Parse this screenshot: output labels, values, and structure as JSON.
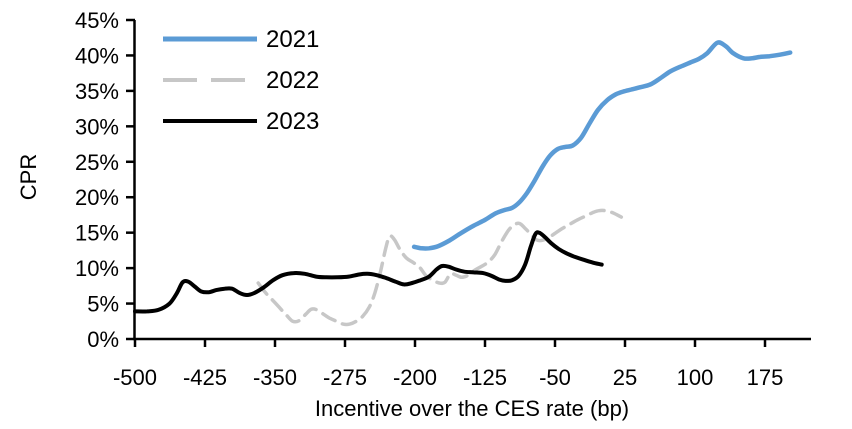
{
  "chart_data": {
    "type": "line",
    "title": "",
    "xlabel": "Incentive over the CES rate (bp)",
    "ylabel": "CPR",
    "xlim": [
      -500,
      230
    ],
    "ylim": [
      0,
      45
    ],
    "grid": false,
    "background": "#FFFFFF",
    "axis_color": "#000000",
    "legend_position": "top-left-inside",
    "x_ticks": {
      "values": [
        -500,
        -425,
        -350,
        -275,
        -200,
        -125,
        -50,
        25,
        100,
        175
      ],
      "labels": [
        "-500",
        "-425",
        "-350",
        "-275",
        "-200",
        "-125",
        "-50",
        "25",
        "100",
        "175"
      ]
    },
    "y_ticks": {
      "values": [
        0,
        5,
        10,
        15,
        20,
        25,
        30,
        35,
        40,
        45
      ],
      "labels": [
        "0%",
        "5%",
        "10%",
        "15%",
        "20%",
        "25%",
        "30%",
        "35%",
        "40%",
        "45%"
      ]
    },
    "series": [
      {
        "name": "2021",
        "color": "#5B9BD5",
        "style": "solid",
        "points": [
          [
            -201,
            13.0
          ],
          [
            -193,
            12.8
          ],
          [
            -185,
            12.8
          ],
          [
            -175,
            13.1
          ],
          [
            -163,
            13.9
          ],
          [
            -150,
            15.0
          ],
          [
            -137,
            16.0
          ],
          [
            -125,
            16.8
          ],
          [
            -114,
            17.7
          ],
          [
            -104,
            18.2
          ],
          [
            -96,
            18.5
          ],
          [
            -88,
            19.3
          ],
          [
            -80,
            20.6
          ],
          [
            -72,
            22.3
          ],
          [
            -63,
            24.4
          ],
          [
            -55,
            25.9
          ],
          [
            -47,
            26.8
          ],
          [
            -39,
            27.1
          ],
          [
            -31,
            27.3
          ],
          [
            -22,
            28.4
          ],
          [
            -13,
            30.4
          ],
          [
            -4,
            32.3
          ],
          [
            6,
            33.7
          ],
          [
            15,
            34.5
          ],
          [
            23,
            34.9
          ],
          [
            32,
            35.2
          ],
          [
            41,
            35.5
          ],
          [
            52,
            35.9
          ],
          [
            62,
            36.7
          ],
          [
            73,
            37.7
          ],
          [
            84,
            38.4
          ],
          [
            95,
            39.0
          ],
          [
            104,
            39.5
          ],
          [
            113,
            40.3
          ],
          [
            124,
            41.8
          ],
          [
            133,
            41.3
          ],
          [
            141,
            40.3
          ],
          [
            152,
            39.6
          ],
          [
            161,
            39.6
          ],
          [
            170,
            39.8
          ],
          [
            180,
            39.9
          ],
          [
            191,
            40.1
          ],
          [
            202,
            40.4
          ]
        ]
      },
      {
        "name": "2022",
        "color": "#C7C7C7",
        "style": "dashed",
        "points": [
          [
            -368,
            7.9
          ],
          [
            -360,
            6.5
          ],
          [
            -352,
            5.4
          ],
          [
            -345,
            4.4
          ],
          [
            -338,
            3.4
          ],
          [
            -331,
            2.5
          ],
          [
            -324,
            2.6
          ],
          [
            -317,
            3.5
          ],
          [
            -311,
            4.2
          ],
          [
            -305,
            4.1
          ],
          [
            -298,
            3.5
          ],
          [
            -291,
            2.9
          ],
          [
            -284,
            2.5
          ],
          [
            -277,
            2.1
          ],
          [
            -270,
            2.1
          ],
          [
            -263,
            2.5
          ],
          [
            -256,
            3.2
          ],
          [
            -249,
            4.5
          ],
          [
            -243,
            6.5
          ],
          [
            -237,
            9.5
          ],
          [
            -231,
            13.0
          ],
          [
            -227,
            14.5
          ],
          [
            -222,
            14.0
          ],
          [
            -216,
            12.6
          ],
          [
            -209,
            11.4
          ],
          [
            -202,
            10.8
          ],
          [
            -195,
            10.1
          ],
          [
            -188,
            8.9
          ],
          [
            -181,
            8.3
          ],
          [
            -174,
            7.9
          ],
          [
            -168,
            8.0
          ],
          [
            -162,
            9.2
          ],
          [
            -156,
            9.0
          ],
          [
            -150,
            8.7
          ],
          [
            -143,
            9.0
          ],
          [
            -136,
            9.7
          ],
          [
            -128,
            10.3
          ],
          [
            -121,
            10.9
          ],
          [
            -114,
            12.0
          ],
          [
            -107,
            13.8
          ],
          [
            -100,
            15.3
          ],
          [
            -94,
            16.1
          ],
          [
            -88,
            16.3
          ],
          [
            -82,
            15.6
          ],
          [
            -76,
            14.8
          ],
          [
            -70,
            14.0
          ],
          [
            -65,
            13.9
          ],
          [
            -58,
            14.2
          ],
          [
            -50,
            14.9
          ],
          [
            -42,
            15.6
          ],
          [
            -34,
            16.2
          ],
          [
            -26,
            16.8
          ],
          [
            -18,
            17.3
          ],
          [
            -10,
            17.8
          ],
          [
            -3,
            18.1
          ],
          [
            4,
            18.1
          ],
          [
            12,
            17.8
          ],
          [
            21,
            17.2
          ]
        ]
      },
      {
        "name": "2023",
        "color": "#000000",
        "style": "solid",
        "points": [
          [
            -500,
            3.9
          ],
          [
            -487,
            3.9
          ],
          [
            -475,
            4.1
          ],
          [
            -463,
            5.0
          ],
          [
            -455,
            6.5
          ],
          [
            -449,
            8.0
          ],
          [
            -443,
            8.1
          ],
          [
            -436,
            7.4
          ],
          [
            -429,
            6.7
          ],
          [
            -421,
            6.6
          ],
          [
            -413,
            6.9
          ],
          [
            -404,
            7.1
          ],
          [
            -396,
            7.1
          ],
          [
            -388,
            6.5
          ],
          [
            -380,
            6.2
          ],
          [
            -372,
            6.5
          ],
          [
            -362,
            7.3
          ],
          [
            -352,
            8.3
          ],
          [
            -342,
            9.0
          ],
          [
            -330,
            9.3
          ],
          [
            -318,
            9.2
          ],
          [
            -306,
            8.8
          ],
          [
            -295,
            8.7
          ],
          [
            -283,
            8.7
          ],
          [
            -271,
            8.8
          ],
          [
            -260,
            9.1
          ],
          [
            -251,
            9.2
          ],
          [
            -241,
            9.0
          ],
          [
            -231,
            8.6
          ],
          [
            -221,
            8.1
          ],
          [
            -212,
            7.7
          ],
          [
            -203,
            7.9
          ],
          [
            -194,
            8.3
          ],
          [
            -185,
            8.8
          ],
          [
            -177,
            9.8
          ],
          [
            -171,
            10.3
          ],
          [
            -164,
            10.2
          ],
          [
            -156,
            9.8
          ],
          [
            -147,
            9.5
          ],
          [
            -137,
            9.4
          ],
          [
            -127,
            9.3
          ],
          [
            -118,
            8.9
          ],
          [
            -110,
            8.4
          ],
          [
            -103,
            8.2
          ],
          [
            -96,
            8.3
          ],
          [
            -89,
            8.9
          ],
          [
            -82,
            10.5
          ],
          [
            -76,
            13.0
          ],
          [
            -71,
            14.8
          ],
          [
            -67,
            15.0
          ],
          [
            -61,
            14.4
          ],
          [
            -54,
            13.5
          ],
          [
            -46,
            12.7
          ],
          [
            -38,
            12.1
          ],
          [
            -29,
            11.6
          ],
          [
            -20,
            11.2
          ],
          [
            -10,
            10.8
          ],
          [
            0,
            10.5
          ]
        ]
      }
    ]
  }
}
